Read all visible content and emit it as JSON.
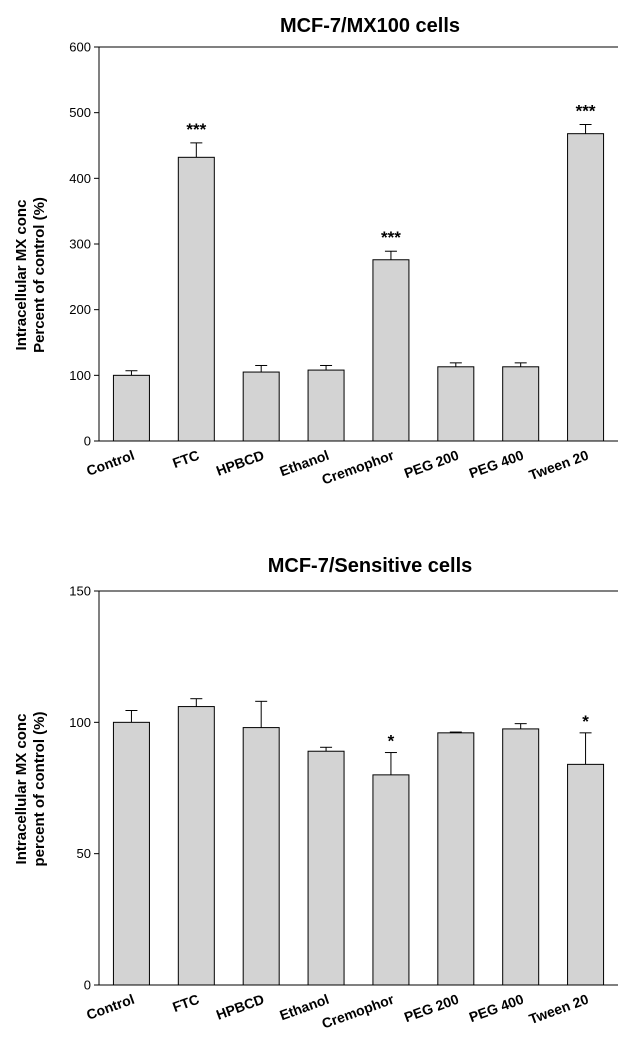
{
  "chart_data": [
    {
      "type": "bar",
      "title": "MCF-7/MX100 cells",
      "ylabel_lines": [
        "Intracellular MX conc",
        "Percent of control (%)"
      ],
      "xlabel": "",
      "ylim": [
        0,
        600
      ],
      "yticks": [
        0,
        100,
        200,
        300,
        400,
        500,
        600
      ],
      "categories": [
        "Control",
        "FTC",
        "HPBCD",
        "Ethanol",
        "Cremophor",
        "PEG 200",
        "PEG 400",
        "Tween 20"
      ],
      "values": [
        100,
        432,
        105,
        108,
        276,
        113,
        113,
        468
      ],
      "errors": [
        7,
        22,
        10,
        7,
        13,
        6,
        6,
        14
      ],
      "significance": [
        "",
        "***",
        "",
        "",
        "***",
        "",
        "",
        "***"
      ],
      "bar_color": "#d3d3d3",
      "grid": false
    },
    {
      "type": "bar",
      "title": "MCF-7/Sensitive cells",
      "ylabel_lines": [
        "Intracellular MX conc",
        "percent of control (%)"
      ],
      "xlabel": "",
      "ylim": [
        0,
        150
      ],
      "yticks": [
        0,
        50,
        100,
        150
      ],
      "categories": [
        "Control",
        "FTC",
        "HPBCD",
        "Ethanol",
        "Cremophor",
        "PEG 200",
        "PEG 400",
        "Tween 20"
      ],
      "values": [
        100,
        106,
        98,
        89,
        80,
        96,
        97.5,
        84
      ],
      "errors": [
        4.5,
        3,
        10,
        1.5,
        8.5,
        0.3,
        2,
        12
      ],
      "significance": [
        "",
        "",
        "",
        "",
        "*",
        "",
        "",
        "*"
      ],
      "bar_color": "#d3d3d3",
      "grid": false
    }
  ]
}
